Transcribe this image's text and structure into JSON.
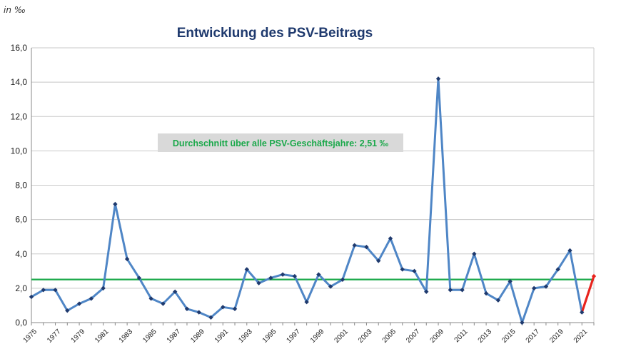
{
  "chart_data": {
    "type": "line",
    "title": "Entwicklung des PSV-Beitrags",
    "unit_label": "in ‰",
    "annotation": "Durchschnitt über alle PSV-Geschäftsjahre: 2,51 ‰",
    "average": 2.51,
    "ylim": [
      0,
      16
    ],
    "yticks": [
      {
        "value": 0,
        "label": "0,0"
      },
      {
        "value": 2,
        "label": "2,0"
      },
      {
        "value": 4,
        "label": "4,0"
      },
      {
        "value": 6,
        "label": "6,0"
      },
      {
        "value": 8,
        "label": "8,0"
      },
      {
        "value": 10,
        "label": "10,0"
      },
      {
        "value": 12,
        "label": "12,0"
      },
      {
        "value": 14,
        "label": "14,0"
      },
      {
        "value": 16,
        "label": "16,0"
      }
    ],
    "xlim": [
      1975,
      2022
    ],
    "xtick_labels": [
      "1975",
      "1977",
      "1979",
      "1981",
      "1983",
      "1985",
      "1987",
      "1989",
      "1991",
      "1993",
      "1995",
      "1997",
      "1999",
      "2001",
      "2003",
      "2005",
      "2007",
      "2009",
      "2011",
      "2013",
      "2015",
      "2017",
      "2019",
      "2021"
    ],
    "grid": true,
    "colors": {
      "line": "#4f86c6",
      "marker": "#1f3a6e",
      "average": "#1aa84a",
      "highlight": "#e8231d",
      "title": "#1f3a6e",
      "annotation_bg": "#d9d9d9",
      "grid": "#c8c8c8"
    },
    "x": [
      1975,
      1976,
      1977,
      1978,
      1979,
      1980,
      1981,
      1982,
      1983,
      1984,
      1985,
      1986,
      1987,
      1988,
      1989,
      1990,
      1991,
      1992,
      1993,
      1994,
      1995,
      1996,
      1997,
      1998,
      1999,
      2000,
      2001,
      2002,
      2003,
      2004,
      2005,
      2006,
      2007,
      2008,
      2009,
      2010,
      2011,
      2012,
      2013,
      2014,
      2015,
      2016,
      2017,
      2018,
      2019,
      2020,
      2021,
      2022
    ],
    "series": [
      {
        "values": [
          1.5,
          1.9,
          1.9,
          0.7,
          1.1,
          1.4,
          2.0,
          6.9,
          3.7,
          2.6,
          1.4,
          1.1,
          1.8,
          0.8,
          0.6,
          0.3,
          0.9,
          0.8,
          3.1,
          2.3,
          2.6,
          2.8,
          2.7,
          1.2,
          2.8,
          2.1,
          2.5,
          4.5,
          4.4,
          3.6,
          4.9,
          3.1,
          3.0,
          1.8,
          14.2,
          1.9,
          1.9,
          4.0,
          1.7,
          1.3,
          2.4,
          0.0,
          2.0,
          2.1,
          3.1,
          4.2,
          0.6,
          2.7
        ]
      }
    ]
  }
}
